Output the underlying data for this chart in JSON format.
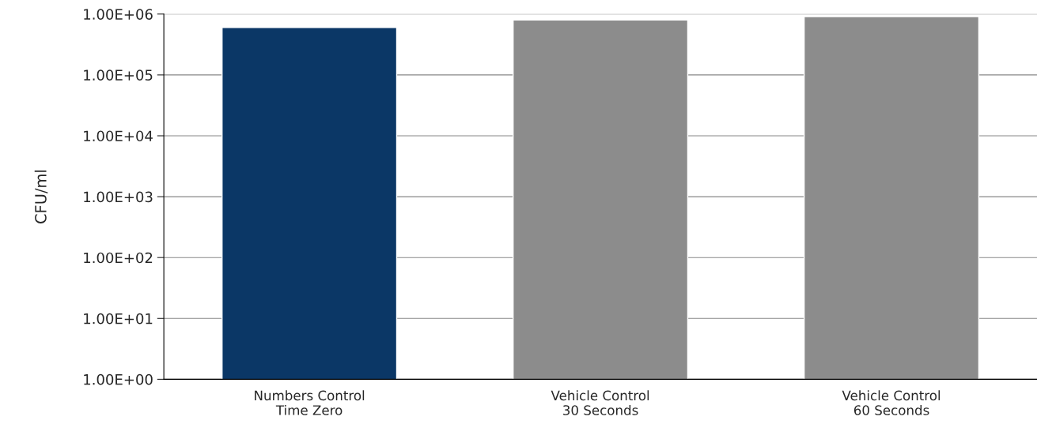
{
  "chart_data": {
    "type": "bar",
    "ylabel": "CFU/ml",
    "categories": [
      "Numbers Control\nTime Zero",
      "Vehicle Control\n30 Seconds",
      "Vehicle Control\n60 Seconds"
    ],
    "values": [
      600000,
      800000,
      910000
    ],
    "colors": [
      "#0b3766",
      "#8c8c8c",
      "#8c8c8c"
    ],
    "log": true,
    "ylim": [
      1,
      1000000
    ],
    "yticks": [
      {
        "value": 1,
        "label": "1.00E+00"
      },
      {
        "value": 10,
        "label": "1.00E+01"
      },
      {
        "value": 100,
        "label": "1.00E+02"
      },
      {
        "value": 1000,
        "label": "1.00E+03"
      },
      {
        "value": 10000,
        "label": "1.00E+04"
      },
      {
        "value": 100000,
        "label": "1.00E+05"
      },
      {
        "value": 1000000,
        "label": "1.00E+06"
      }
    ],
    "grid": "y",
    "legend": false
  }
}
